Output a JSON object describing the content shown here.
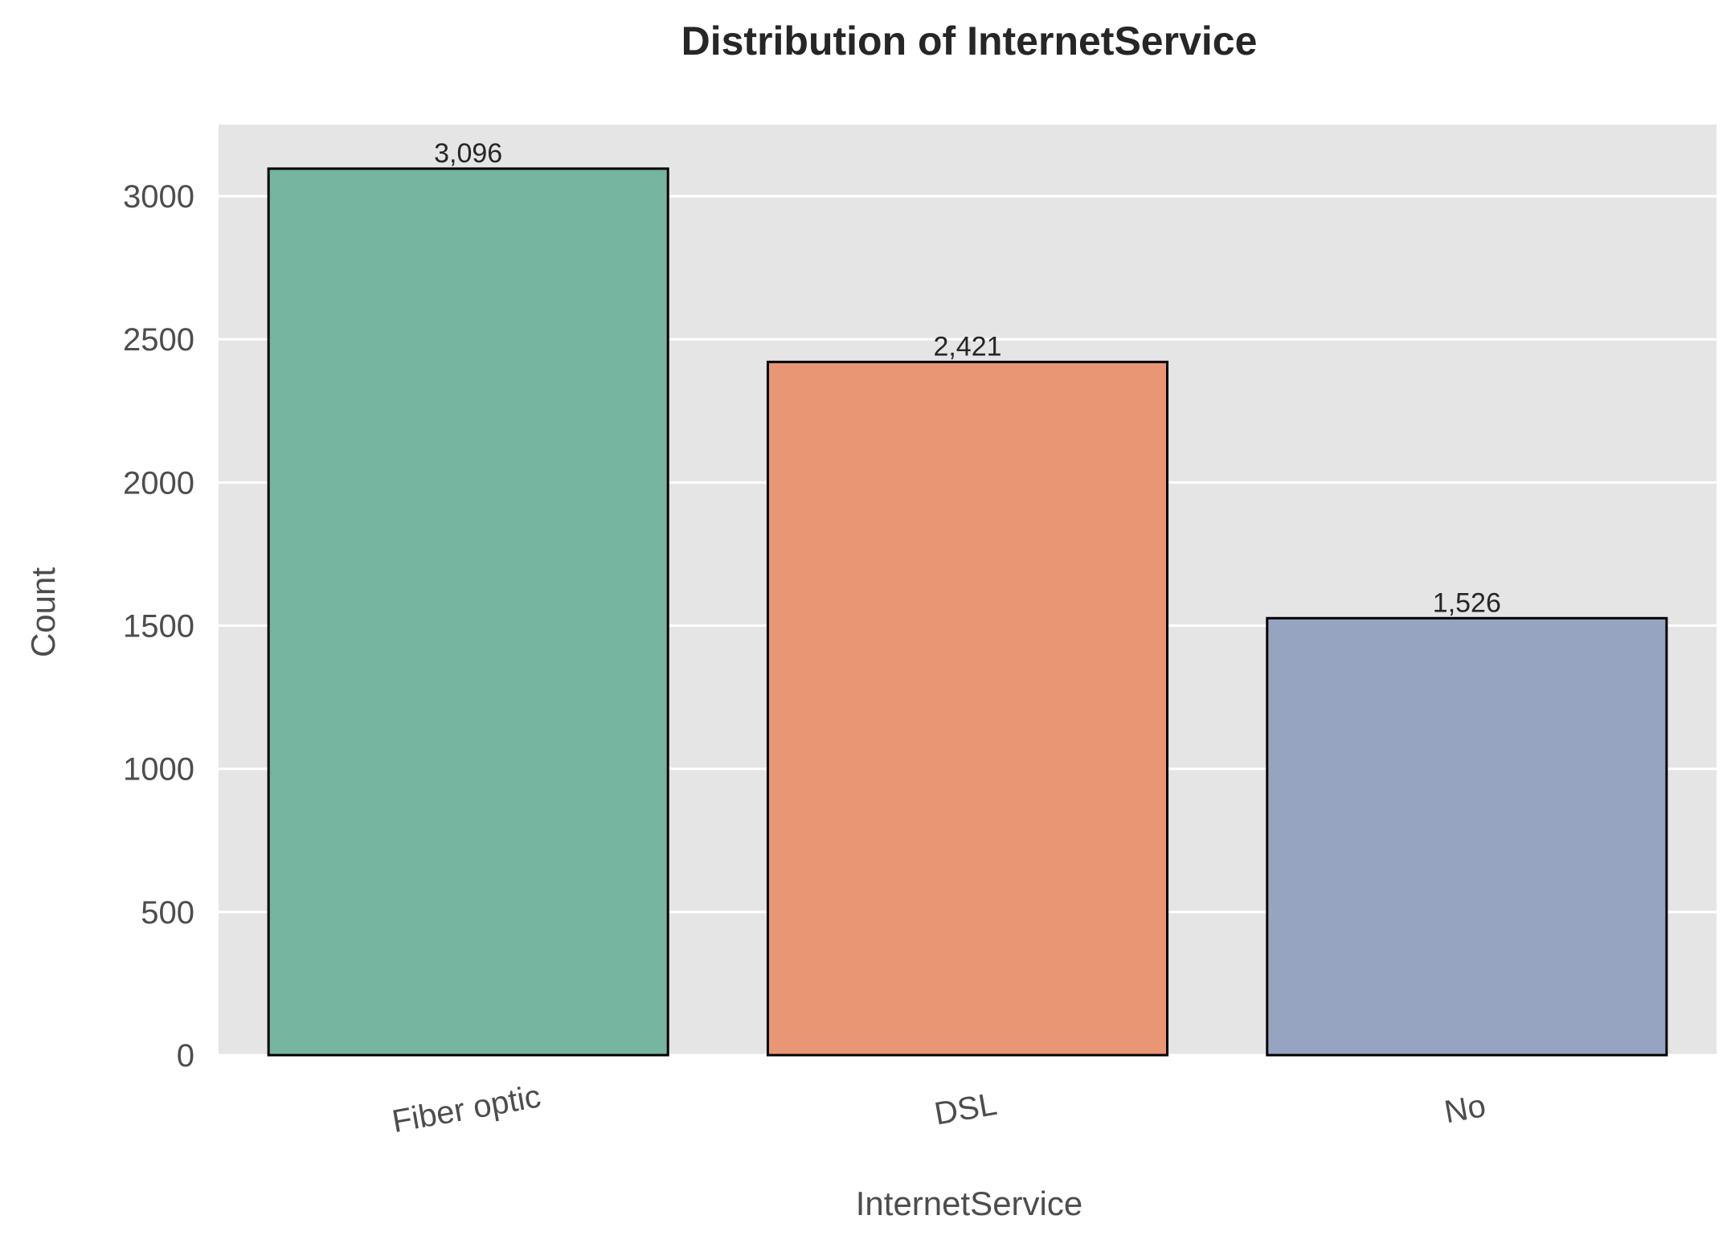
{
  "chart_data": {
    "type": "bar",
    "title": "Distribution of InternetService",
    "xlabel": "InternetService",
    "ylabel": "Count",
    "categories": [
      "Fiber optic",
      "DSL",
      "No"
    ],
    "values": [
      3096,
      2421,
      1526
    ],
    "data_labels": [
      "3,096",
      "2,421",
      "1,526"
    ],
    "colors": [
      "#76b5a0",
      "#e99675",
      "#96a4c2"
    ],
    "edge_color": "#000000",
    "background_color": "#e5e5e5",
    "grid": true,
    "grid_color": "#ffffff",
    "ylim": [
      0,
      3250
    ],
    "yticks": [
      0,
      500,
      1000,
      1500,
      2000,
      2500,
      3000
    ],
    "ytick_labels": [
      "0",
      "500",
      "1000",
      "1500",
      "2000",
      "2500",
      "3000"
    ],
    "xtick_rotation_deg": -10
  }
}
